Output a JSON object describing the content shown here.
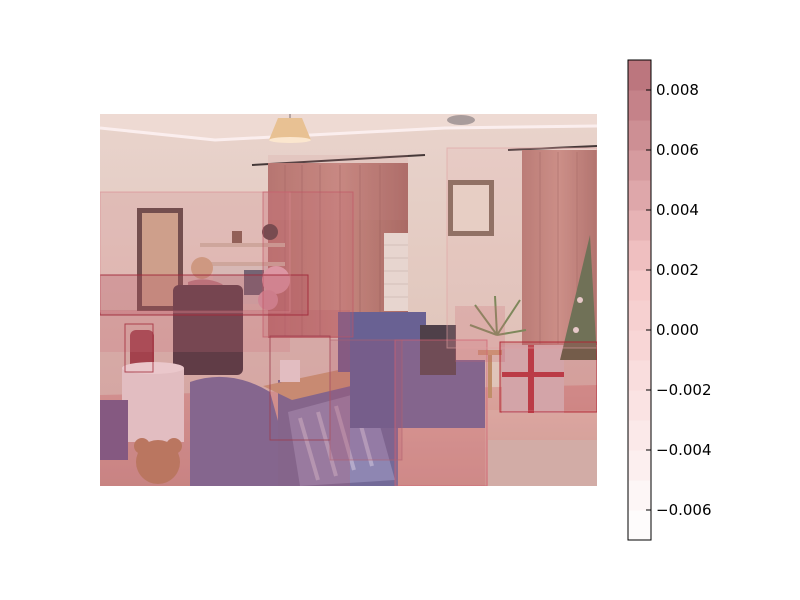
{
  "chart_data": {
    "type": "heatmap",
    "title": "",
    "xlabel": "",
    "ylabel": "",
    "background_image": {
      "description": "living room photo",
      "overlay": "red bounding-box attribution heatmap"
    },
    "colorbar": {
      "colormap": "white-to-dark-red",
      "vmin": -0.007,
      "vmax": 0.009,
      "ticks": [
        0.008,
        0.006,
        0.004,
        0.002,
        0.0,
        -0.002,
        -0.004,
        -0.006
      ],
      "tick_labels": [
        "0.008",
        "0.006",
        "0.004",
        "0.002",
        "0.000",
        "−0.002",
        "−0.004",
        "−0.006"
      ]
    },
    "colors": {
      "low": "#ffffff",
      "mid": "#f5c8c8",
      "high": "#b87078"
    }
  }
}
